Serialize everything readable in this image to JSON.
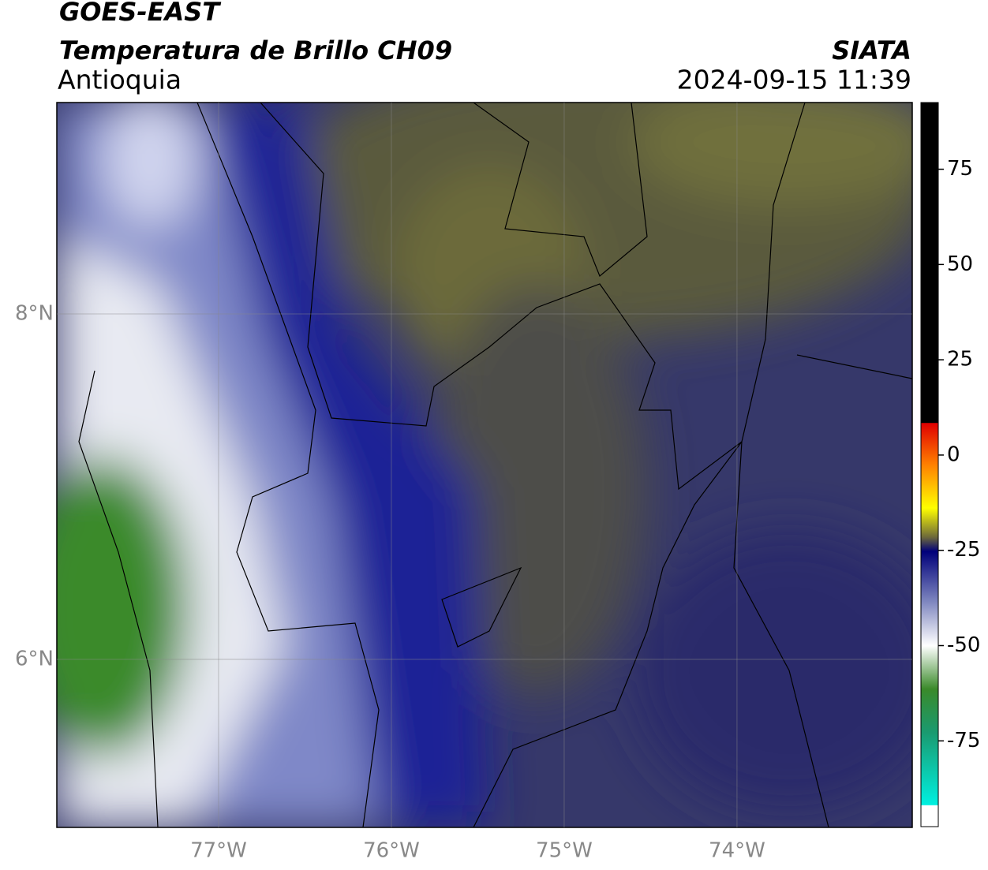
{
  "header": {
    "satellite": "GOES-EAST",
    "product": "Temperatura de Brillo CH09",
    "region": "Antioquia",
    "source": "SIATA",
    "datetime": "2024-09-15 11:39"
  },
  "map": {
    "xlim": [
      -77.936,
      -72.986
    ],
    "ylim": [
      5.027,
      9.224
    ],
    "lon_ticks": [
      {
        "value": -77,
        "label": "77°W"
      },
      {
        "value": -76,
        "label": "76°W"
      },
      {
        "value": -75,
        "label": "75°W"
      },
      {
        "value": -74,
        "label": "74°W"
      }
    ],
    "lat_ticks": [
      {
        "value": 8,
        "label": "8°N"
      },
      {
        "value": 6,
        "label": "6°N"
      }
    ]
  },
  "colorbar": {
    "lim": [
      -97.5,
      92.5
    ],
    "ticks": [
      75,
      50,
      25,
      0,
      -25,
      -50,
      -75
    ]
  }
}
